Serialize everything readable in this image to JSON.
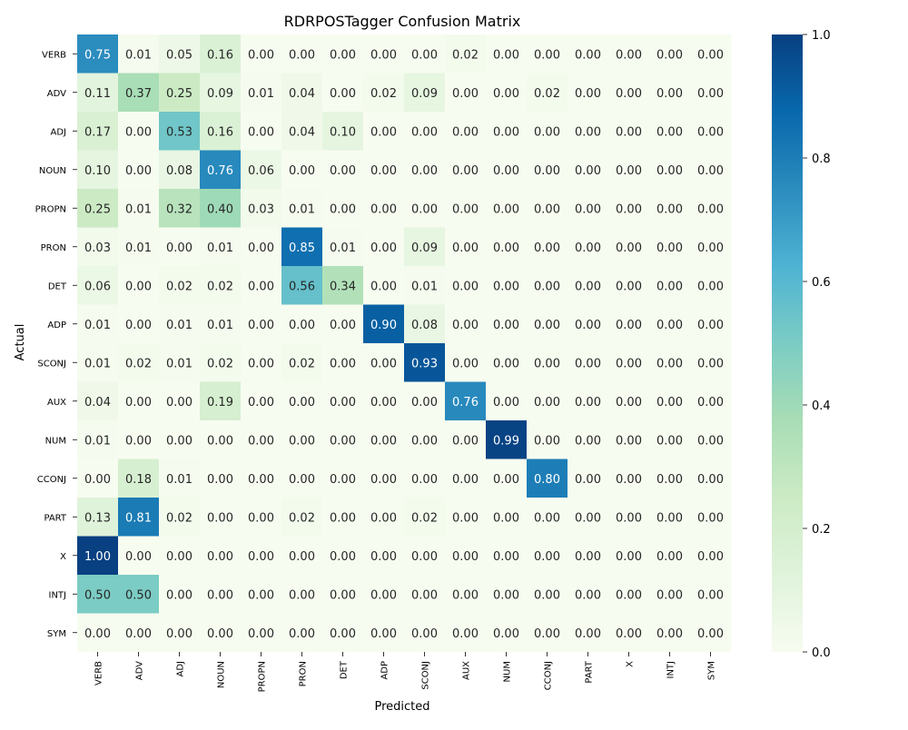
{
  "chart_data": {
    "type": "heatmap",
    "title": "RDRPOSTagger Confusion Matrix",
    "xlabel": "Predicted",
    "ylabel": "Actual",
    "x_categories": [
      "VERB",
      "ADV",
      "ADJ",
      "NOUN",
      "PROPN",
      "PRON",
      "DET",
      "ADP",
      "SCONJ",
      "AUX",
      "NUM",
      "CCONJ",
      "PART",
      "X",
      "INTJ",
      "SYM"
    ],
    "y_categories": [
      "VERB",
      "ADV",
      "ADJ",
      "NOUN",
      "PROPN",
      "PRON",
      "DET",
      "ADP",
      "SCONJ",
      "AUX",
      "NUM",
      "CCONJ",
      "PART",
      "X",
      "INTJ",
      "SYM"
    ],
    "values": [
      [
        0.75,
        0.01,
        0.05,
        0.16,
        0.0,
        0.0,
        0.0,
        0.0,
        0.0,
        0.02,
        0.0,
        0.0,
        0.0,
        0.0,
        0.0,
        0.0
      ],
      [
        0.11,
        0.37,
        0.25,
        0.09,
        0.01,
        0.04,
        0.0,
        0.02,
        0.09,
        0.0,
        0.0,
        0.02,
        0.0,
        0.0,
        0.0,
        0.0
      ],
      [
        0.17,
        0.0,
        0.53,
        0.16,
        0.0,
        0.04,
        0.1,
        0.0,
        0.0,
        0.0,
        0.0,
        0.0,
        0.0,
        0.0,
        0.0,
        0.0
      ],
      [
        0.1,
        0.0,
        0.08,
        0.76,
        0.06,
        0.0,
        0.0,
        0.0,
        0.0,
        0.0,
        0.0,
        0.0,
        0.0,
        0.0,
        0.0,
        0.0
      ],
      [
        0.25,
        0.01,
        0.32,
        0.4,
        0.03,
        0.01,
        0.0,
        0.0,
        0.0,
        0.0,
        0.0,
        0.0,
        0.0,
        0.0,
        0.0,
        0.0
      ],
      [
        0.03,
        0.01,
        0.0,
        0.01,
        0.0,
        0.85,
        0.01,
        0.0,
        0.09,
        0.0,
        0.0,
        0.0,
        0.0,
        0.0,
        0.0,
        0.0
      ],
      [
        0.06,
        0.0,
        0.02,
        0.02,
        0.0,
        0.56,
        0.34,
        0.0,
        0.01,
        0.0,
        0.0,
        0.0,
        0.0,
        0.0,
        0.0,
        0.0
      ],
      [
        0.01,
        0.0,
        0.01,
        0.01,
        0.0,
        0.0,
        0.0,
        0.9,
        0.08,
        0.0,
        0.0,
        0.0,
        0.0,
        0.0,
        0.0,
        0.0
      ],
      [
        0.01,
        0.02,
        0.01,
        0.02,
        0.0,
        0.02,
        0.0,
        0.0,
        0.93,
        0.0,
        0.0,
        0.0,
        0.0,
        0.0,
        0.0,
        0.0
      ],
      [
        0.04,
        0.0,
        0.0,
        0.19,
        0.0,
        0.0,
        0.0,
        0.0,
        0.0,
        0.76,
        0.0,
        0.0,
        0.0,
        0.0,
        0.0,
        0.0
      ],
      [
        0.01,
        0.0,
        0.0,
        0.0,
        0.0,
        0.0,
        0.0,
        0.0,
        0.0,
        0.0,
        0.99,
        0.0,
        0.0,
        0.0,
        0.0,
        0.0
      ],
      [
        0.0,
        0.18,
        0.01,
        0.0,
        0.0,
        0.0,
        0.0,
        0.0,
        0.0,
        0.0,
        0.0,
        0.8,
        0.0,
        0.0,
        0.0,
        0.0
      ],
      [
        0.13,
        0.81,
        0.02,
        0.0,
        0.0,
        0.02,
        0.0,
        0.0,
        0.02,
        0.0,
        0.0,
        0.0,
        0.0,
        0.0,
        0.0,
        0.0
      ],
      [
        1.0,
        0.0,
        0.0,
        0.0,
        0.0,
        0.0,
        0.0,
        0.0,
        0.0,
        0.0,
        0.0,
        0.0,
        0.0,
        0.0,
        0.0,
        0.0
      ],
      [
        0.5,
        0.5,
        0.0,
        0.0,
        0.0,
        0.0,
        0.0,
        0.0,
        0.0,
        0.0,
        0.0,
        0.0,
        0.0,
        0.0,
        0.0,
        0.0
      ],
      [
        0.0,
        0.0,
        0.0,
        0.0,
        0.0,
        0.0,
        0.0,
        0.0,
        0.0,
        0.0,
        0.0,
        0.0,
        0.0,
        0.0,
        0.0,
        0.0
      ]
    ],
    "value_format": "0.00",
    "colorbar": {
      "range": [
        0.0,
        1.0
      ],
      "ticks": [
        "0.0",
        "0.2",
        "0.4",
        "0.6",
        "0.8",
        "1.0"
      ],
      "colormap": "GnBu",
      "stops": [
        "#f7fcf0",
        "#e0f3db",
        "#ccebc5",
        "#a8ddb5",
        "#7bccc4",
        "#4eb3d3",
        "#2b8cbe",
        "#0868ac",
        "#084081"
      ]
    },
    "grid": false,
    "annotations": true
  }
}
